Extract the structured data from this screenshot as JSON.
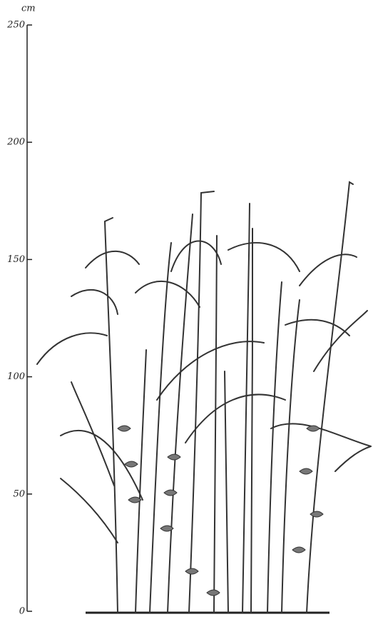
{
  "axis": {
    "unit": "cm",
    "ylim": [
      0,
      250
    ],
    "yticks": [
      0,
      50,
      100,
      150,
      200,
      250
    ]
  }
}
